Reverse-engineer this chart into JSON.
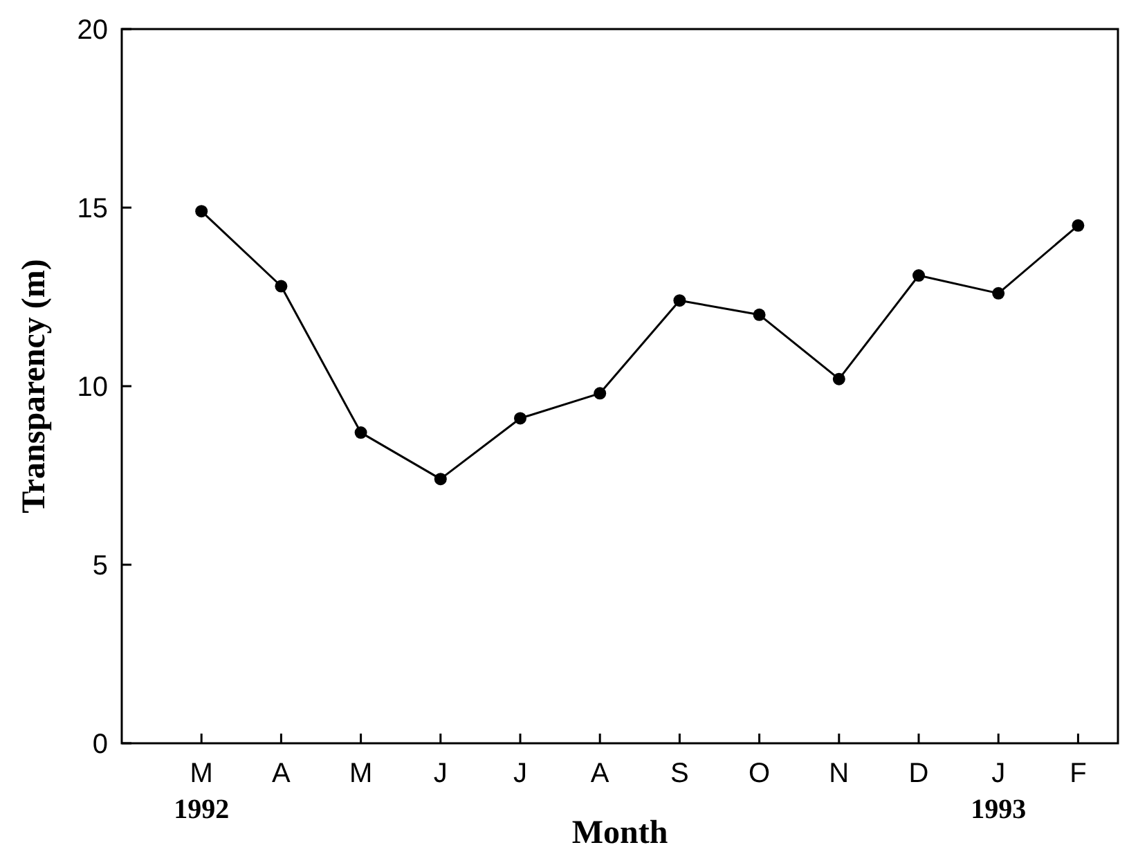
{
  "chart_data": {
    "type": "line",
    "xlabel": "Month",
    "ylabel": "Transparency (m)",
    "categories": [
      "M\n1992",
      "A",
      "M",
      "J",
      "J",
      "A",
      "S",
      "O",
      "N",
      "D",
      "J\n1993",
      "F"
    ],
    "series": [
      {
        "color": "#000000",
        "values": [
          14.9,
          12.8,
          8.7,
          7.4,
          9.1,
          9.8,
          12.4,
          12.0,
          10.2,
          13.1,
          12.6,
          14.5
        ]
      }
    ],
    "ylim": [
      0,
      20
    ],
    "yticks": [
      0,
      5,
      10,
      15,
      20
    ],
    "marker": "circle",
    "line_style": "solid",
    "grid": false
  }
}
